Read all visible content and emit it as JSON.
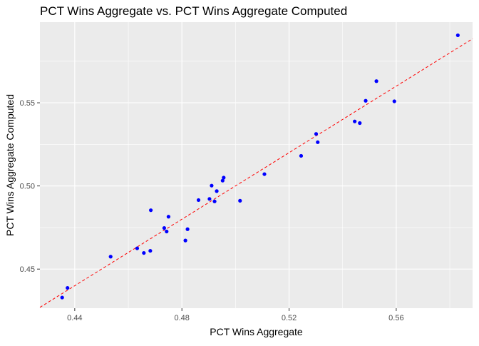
{
  "chart_data": {
    "type": "scatter",
    "title": "PCT Wins Aggregate vs. PCT Wins Aggregate Computed",
    "xlabel": "PCT Wins Aggregate",
    "ylabel": "PCT Wins Aggregate Computed",
    "xlim": [
      0.427,
      0.5885
    ],
    "ylim": [
      0.4265,
      0.5985
    ],
    "x_ticks": [
      0.44,
      0.48,
      0.52,
      0.56
    ],
    "x_tick_labels": [
      "0.44",
      "0.48",
      "0.52",
      "0.56"
    ],
    "y_ticks": [
      0.45,
      0.5,
      0.55
    ],
    "y_tick_labels": [
      "0.45",
      "0.50",
      "0.55"
    ],
    "grid": true,
    "point_color": "#0000ff",
    "reference_line": {
      "type": "identity",
      "color": "#ff0000",
      "style": "dashed"
    },
    "panel_background": "#ebebeb",
    "points": [
      {
        "x": 0.4353,
        "y": 0.4329
      },
      {
        "x": 0.4373,
        "y": 0.4387
      },
      {
        "x": 0.4534,
        "y": 0.4575
      },
      {
        "x": 0.4633,
        "y": 0.4625
      },
      {
        "x": 0.4658,
        "y": 0.4597
      },
      {
        "x": 0.4682,
        "y": 0.461
      },
      {
        "x": 0.4684,
        "y": 0.4854
      },
      {
        "x": 0.4734,
        "y": 0.4747
      },
      {
        "x": 0.4743,
        "y": 0.4726
      },
      {
        "x": 0.475,
        "y": 0.4815
      },
      {
        "x": 0.4813,
        "y": 0.4672
      },
      {
        "x": 0.4821,
        "y": 0.474
      },
      {
        "x": 0.4862,
        "y": 0.4915
      },
      {
        "x": 0.4903,
        "y": 0.4922
      },
      {
        "x": 0.4911,
        "y": 0.5002
      },
      {
        "x": 0.4922,
        "y": 0.4907
      },
      {
        "x": 0.493,
        "y": 0.4969
      },
      {
        "x": 0.4952,
        "y": 0.5032
      },
      {
        "x": 0.4956,
        "y": 0.505
      },
      {
        "x": 0.5017,
        "y": 0.4911
      },
      {
        "x": 0.5108,
        "y": 0.5071
      },
      {
        "x": 0.5245,
        "y": 0.5181
      },
      {
        "x": 0.5301,
        "y": 0.5313
      },
      {
        "x": 0.5307,
        "y": 0.5263
      },
      {
        "x": 0.5445,
        "y": 0.5388
      },
      {
        "x": 0.5464,
        "y": 0.5378
      },
      {
        "x": 0.5486,
        "y": 0.5512
      },
      {
        "x": 0.5526,
        "y": 0.563
      },
      {
        "x": 0.5593,
        "y": 0.5509
      },
      {
        "x": 0.583,
        "y": 0.5906
      }
    ]
  }
}
